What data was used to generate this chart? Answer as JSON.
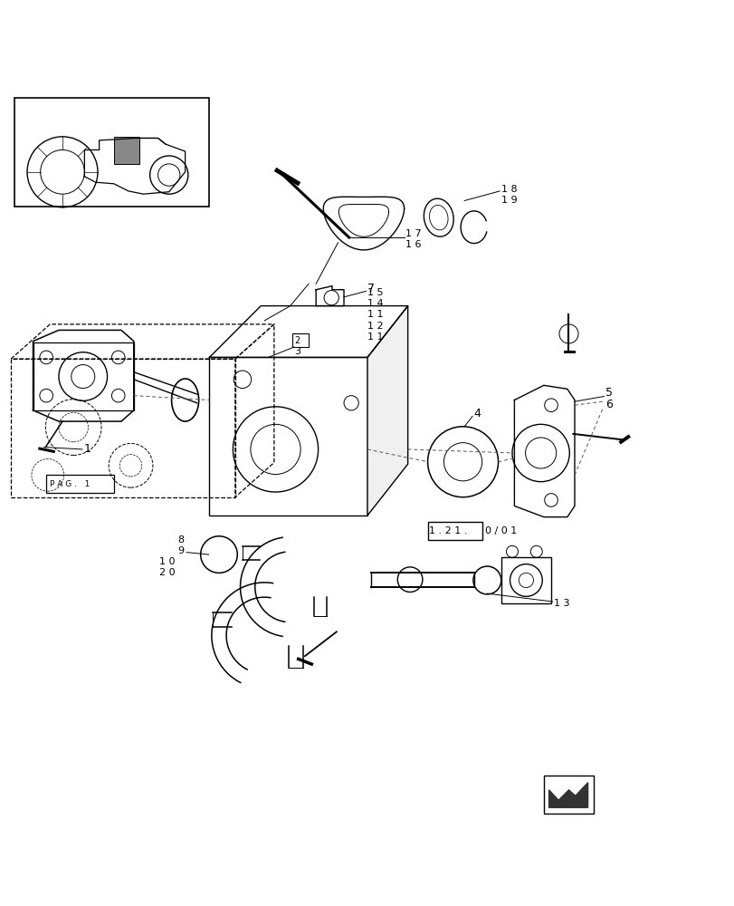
{
  "bg_color": "#ffffff",
  "line_color": "#000000",
  "dashed_color": "#555555"
}
